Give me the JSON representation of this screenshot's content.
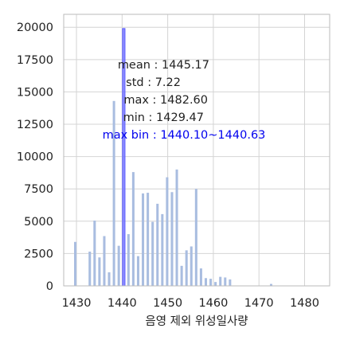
{
  "chart_data": {
    "type": "bar",
    "subtype": "histogram",
    "xlabel": "음영 제외 위성일사량",
    "ylabel": "",
    "xlim": [
      1427.2,
      1485.5
    ],
    "ylim": [
      0,
      21000
    ],
    "xticks": [
      1430,
      1440,
      1450,
      1460,
      1470,
      1480
    ],
    "yticks": [
      0,
      2500,
      5000,
      7500,
      10000,
      12500,
      15000,
      17500,
      20000
    ],
    "grid": true,
    "bin_width": 0.53,
    "bar_color": "#a9bde0",
    "highlight_color": "#7777ff",
    "bins": [
      {
        "x": 1429.47,
        "value": 3400
      },
      {
        "x": 1432.65,
        "value": 2650
      },
      {
        "x": 1433.71,
        "value": 5050
      },
      {
        "x": 1434.77,
        "value": 2200
      },
      {
        "x": 1435.83,
        "value": 3850
      },
      {
        "x": 1436.89,
        "value": 1050
      },
      {
        "x": 1437.95,
        "value": 14300
      },
      {
        "x": 1439.01,
        "value": 3100
      },
      {
        "x": 1440.1,
        "value": 19900,
        "highlight": true
      },
      {
        "x": 1441.13,
        "value": 4000
      },
      {
        "x": 1442.19,
        "value": 8800
      },
      {
        "x": 1443.25,
        "value": 2300
      },
      {
        "x": 1444.31,
        "value": 7150
      },
      {
        "x": 1445.37,
        "value": 7200
      },
      {
        "x": 1446.43,
        "value": 4950
      },
      {
        "x": 1447.49,
        "value": 6350
      },
      {
        "x": 1448.55,
        "value": 5550
      },
      {
        "x": 1449.61,
        "value": 8400
      },
      {
        "x": 1450.67,
        "value": 7250
      },
      {
        "x": 1451.73,
        "value": 9000
      },
      {
        "x": 1452.79,
        "value": 1550
      },
      {
        "x": 1453.85,
        "value": 2750
      },
      {
        "x": 1454.91,
        "value": 3050
      },
      {
        "x": 1455.97,
        "value": 7500
      },
      {
        "x": 1457.03,
        "value": 1350
      },
      {
        "x": 1458.09,
        "value": 600
      },
      {
        "x": 1459.15,
        "value": 550
      },
      {
        "x": 1460.21,
        "value": 300
      },
      {
        "x": 1461.27,
        "value": 700
      },
      {
        "x": 1462.33,
        "value": 650
      },
      {
        "x": 1463.39,
        "value": 500
      },
      {
        "x": 1472.4,
        "value": 150
      },
      {
        "x": 1482.6,
        "value": 30
      }
    ],
    "annotations": [
      {
        "text": "mean : 1445.17",
        "highlight": false
      },
      {
        "text": "std : 7.22",
        "highlight": false
      },
      {
        "text": "max : 1482.60",
        "highlight": false
      },
      {
        "text": "min : 1429.47",
        "highlight": false
      },
      {
        "text": "max bin : 1440.10~1440.63",
        "highlight": true
      }
    ]
  }
}
